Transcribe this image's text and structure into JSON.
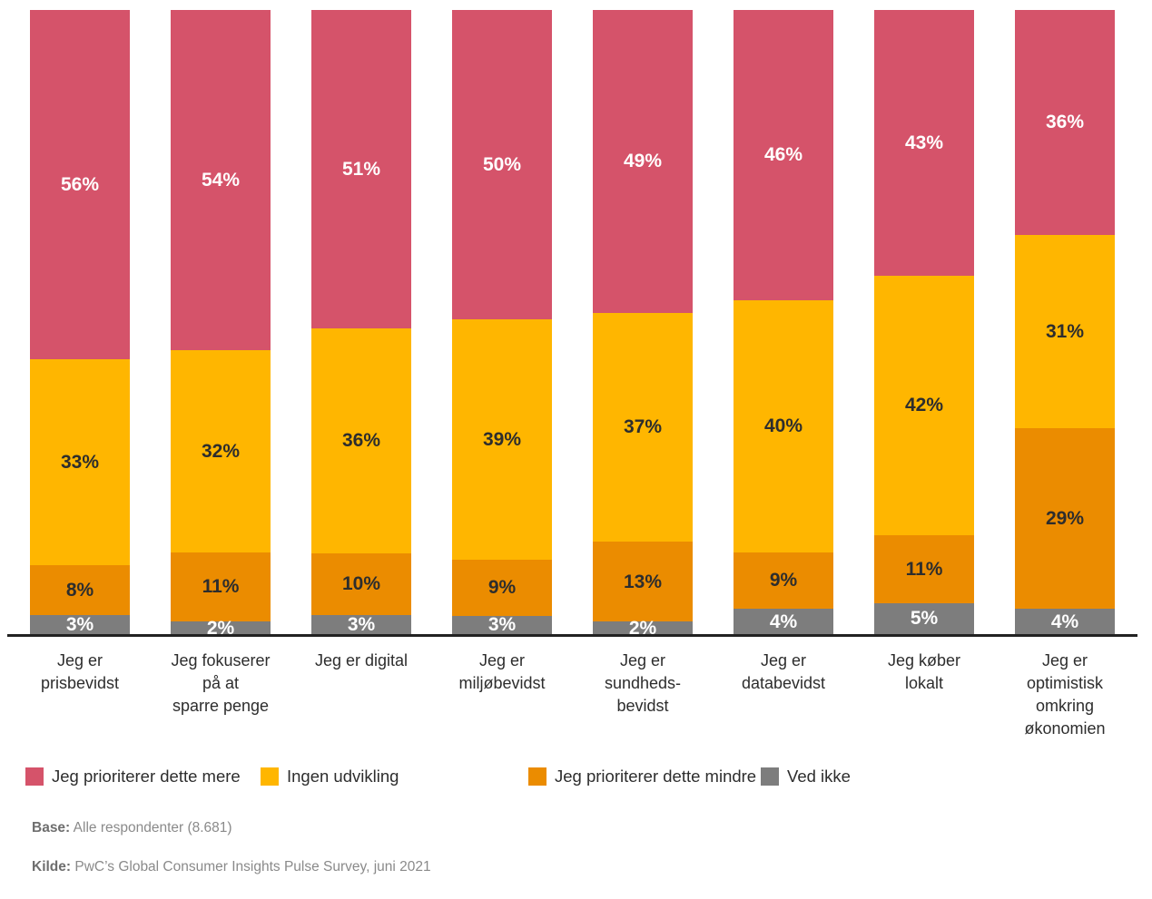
{
  "chart_data": {
    "type": "bar",
    "variant": "stacked-100-percent-column",
    "title": "",
    "xlabel": "",
    "ylabel": "",
    "ylim": [
      0,
      100
    ],
    "grid": false,
    "legend_position": "bottom",
    "value_suffix": "%",
    "categories": [
      "Jeg er\nprisbevidst",
      "Jeg fokuserer\npå at\nsparre penge",
      "Jeg er digital",
      "Jeg er\nmiljøbevidst",
      "Jeg er\nsundheds-\nbevidst",
      "Jeg er\ndatabevidst",
      "Jeg køber\nlokalt",
      "Jeg er\noptimistisk\nomkring\nøkonomien"
    ],
    "series": [
      {
        "name": "Jeg prioriterer dette mere",
        "color": "#d5536a",
        "label_color": "#ffffff",
        "values": [
          56,
          54,
          51,
          50,
          49,
          46,
          43,
          36
        ]
      },
      {
        "name": "Ingen udvikling",
        "color": "#ffb600",
        "label_color": "#2d2d2d",
        "values": [
          33,
          32,
          36,
          39,
          37,
          40,
          42,
          31
        ]
      },
      {
        "name": "Jeg prioriterer dette mindre",
        "color": "#eb8c00",
        "label_color": "#2d2d2d",
        "values": [
          8,
          11,
          10,
          9,
          13,
          9,
          11,
          29
        ]
      },
      {
        "name": "Ved ikke",
        "color": "#7d7d7d",
        "label_color": "#ffffff",
        "values": [
          3,
          2,
          3,
          3,
          2,
          4,
          5,
          4
        ]
      }
    ]
  },
  "colors": {
    "axis_line": "#222222",
    "category_text": "#2d2d2d",
    "footnote_text": "#8a8a8a"
  },
  "footer": {
    "base_label": "Base:",
    "base_text": "Alle respondenter (8.681)",
    "source_label": "Kilde:",
    "source_text": "PwC’s Global Consumer Insights Pulse Survey, juni 2021"
  }
}
